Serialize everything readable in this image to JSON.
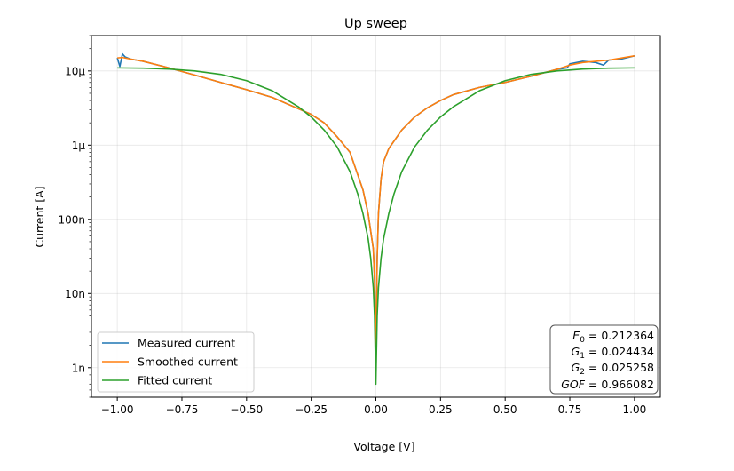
{
  "chart_data": {
    "type": "line",
    "title": "Up sweep",
    "xlabel": "Voltage [V]",
    "ylabel": "Current [A]",
    "xlim": [
      -1.1,
      1.1
    ],
    "ylim": [
      4e-10,
      3e-05
    ],
    "yscale": "log",
    "grid": true,
    "x_ticks": [
      -1.0,
      -0.75,
      -0.5,
      -0.25,
      0.0,
      0.25,
      0.5,
      0.75,
      1.0
    ],
    "x_tick_labels": [
      "−1.00",
      "−0.75",
      "−0.50",
      "−0.25",
      "0.00",
      "0.25",
      "0.50",
      "0.75",
      "1.00"
    ],
    "y_ticks": [
      1e-09,
      1e-08,
      1e-07,
      1e-06,
      1e-05
    ],
    "y_tick_labels": [
      "1n",
      "10n",
      "100n",
      "1μ",
      "10μ"
    ],
    "legend_position": "lower-left",
    "series": [
      {
        "name": "Measured current",
        "color": "#1f77b4",
        "x": [
          -1.0,
          -0.99,
          -0.98,
          -0.97,
          -0.95,
          -0.9,
          -0.8,
          -0.7,
          -0.6,
          -0.5,
          -0.4,
          -0.3,
          -0.25,
          -0.2,
          -0.15,
          -0.1,
          -0.05,
          -0.03,
          -0.01,
          -0.005,
          0.0,
          0.005,
          0.01,
          0.02,
          0.03,
          0.05,
          0.1,
          0.15,
          0.2,
          0.25,
          0.3,
          0.4,
          0.5,
          0.6,
          0.7,
          0.74,
          0.75,
          0.8,
          0.85,
          0.88,
          0.9,
          0.95,
          1.0
        ],
        "y": [
          1.5e-05,
          1.15e-05,
          1.7e-05,
          1.55e-05,
          1.45e-05,
          1.35e-05,
          1.1e-05,
          8.8e-06,
          7e-06,
          5.6e-06,
          4.4e-06,
          3.1e-06,
          2.6e-06,
          2e-06,
          1.3e-06,
          8e-07,
          2.5e-07,
          1.2e-07,
          4e-08,
          1.5e-08,
          1.3e-09,
          3e-08,
          1.2e-07,
          3.5e-07,
          6e-07,
          9e-07,
          1.6e-06,
          2.4e-06,
          3.2e-06,
          4e-06,
          4.8e-06,
          6e-06,
          7e-06,
          8.5e-06,
          1.05e-05,
          1.1e-05,
          1.25e-05,
          1.35e-05,
          1.3e-05,
          1.2e-05,
          1.4e-05,
          1.45e-05,
          1.6e-05
        ]
      },
      {
        "name": "Smoothed current",
        "color": "#ff7f0e",
        "x": [
          -1.0,
          -0.98,
          -0.95,
          -0.9,
          -0.8,
          -0.7,
          -0.6,
          -0.5,
          -0.4,
          -0.3,
          -0.25,
          -0.2,
          -0.15,
          -0.1,
          -0.05,
          -0.03,
          -0.01,
          -0.005,
          0.0,
          0.005,
          0.01,
          0.02,
          0.03,
          0.05,
          0.1,
          0.15,
          0.2,
          0.25,
          0.3,
          0.4,
          0.5,
          0.6,
          0.7,
          0.75,
          0.8,
          0.9,
          1.0
        ],
        "y": [
          1.5e-05,
          1.52e-05,
          1.45e-05,
          1.35e-05,
          1.1e-05,
          8.8e-06,
          7e-06,
          5.6e-06,
          4.4e-06,
          3.1e-06,
          2.6e-06,
          2e-06,
          1.3e-06,
          8e-07,
          2.5e-07,
          1.2e-07,
          4e-08,
          1.5e-08,
          1.3e-09,
          3e-08,
          1.2e-07,
          3.5e-07,
          6e-07,
          9e-07,
          1.6e-06,
          2.4e-06,
          3.2e-06,
          4e-06,
          4.8e-06,
          6e-06,
          7e-06,
          8.5e-06,
          1.05e-05,
          1.2e-05,
          1.3e-05,
          1.4e-05,
          1.6e-05
        ]
      },
      {
        "name": "Fitted current",
        "color": "#2ca02c",
        "x": [
          -1.0,
          -0.9,
          -0.8,
          -0.7,
          -0.6,
          -0.5,
          -0.4,
          -0.3,
          -0.25,
          -0.2,
          -0.15,
          -0.1,
          -0.07,
          -0.05,
          -0.03,
          -0.02,
          -0.01,
          -0.005,
          0.0,
          0.005,
          0.01,
          0.02,
          0.03,
          0.05,
          0.07,
          0.1,
          0.15,
          0.2,
          0.25,
          0.3,
          0.4,
          0.5,
          0.6,
          0.7,
          0.8,
          0.9,
          1.0
        ],
        "y": [
          1.1e-05,
          1.09e-05,
          1.06e-05,
          1e-05,
          9e-06,
          7.4e-06,
          5.4e-06,
          3.3e-06,
          2.4e-06,
          1.6e-06,
          9.5e-07,
          4.4e-07,
          2.2e-07,
          1.2e-07,
          5.5e-08,
          3e-08,
          1.2e-08,
          5e-09,
          6e-10,
          5e-09,
          1.2e-08,
          3e-08,
          5.5e-08,
          1.2e-07,
          2.2e-07,
          4.4e-07,
          9.5e-07,
          1.6e-06,
          2.4e-06,
          3.3e-06,
          5.4e-06,
          7.4e-06,
          9e-06,
          1e-05,
          1.06e-05,
          1.09e-05,
          1.1e-05
        ]
      }
    ],
    "annotation": {
      "lines": [
        {
          "var": "E",
          "sub": "0",
          "value": "0.212364"
        },
        {
          "var": "G",
          "sub": "1",
          "value": "0.024434"
        },
        {
          "var": "G",
          "sub": "2",
          "value": "0.025258"
        },
        {
          "var": "GOF",
          "sub": "",
          "value": "0.966082"
        }
      ]
    }
  }
}
